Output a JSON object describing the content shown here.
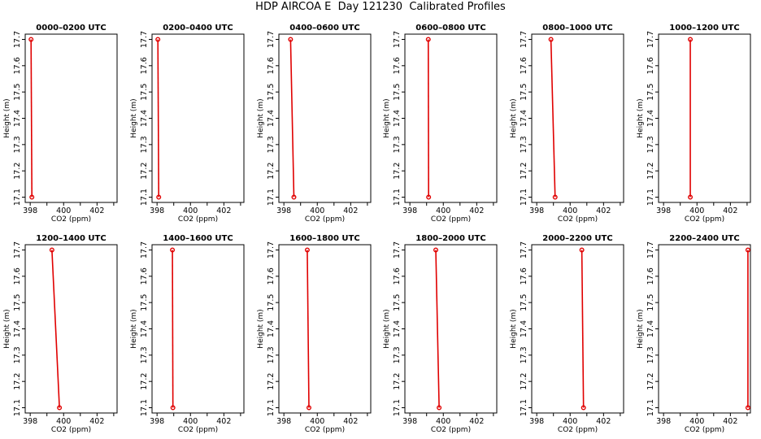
{
  "figure": {
    "title": "HDP AIRCOA E  Day 121230  Calibrated Profiles"
  },
  "colors": {
    "profile": "#e00000",
    "frame": "#000000"
  },
  "chart_data": [
    {
      "type": "line",
      "title": "0000–0200 UTC",
      "xlabel": "CO2 (ppm)",
      "ylabel": "Height (m)",
      "xlim": [
        397.7,
        403.2
      ],
      "ylim": [
        17.08,
        17.72
      ],
      "xticks": [
        "398",
        "400",
        "402"
      ],
      "yticks": [
        "17.1",
        "17.2",
        "17.3",
        "17.4",
        "17.5",
        "17.6",
        "17.7"
      ],
      "x": [
        398.05,
        398.1
      ],
      "y": [
        17.7,
        17.1
      ],
      "grid": false
    },
    {
      "type": "line",
      "title": "0200–0400 UTC",
      "xlabel": "CO2 (ppm)",
      "ylabel": "Height (m)",
      "xlim": [
        397.7,
        403.2
      ],
      "ylim": [
        17.08,
        17.72
      ],
      "xticks": [
        "398",
        "400",
        "402"
      ],
      "yticks": [
        "17.1",
        "17.2",
        "17.3",
        "17.4",
        "17.5",
        "17.6",
        "17.7"
      ],
      "x": [
        398.05,
        398.1
      ],
      "y": [
        17.7,
        17.1
      ],
      "grid": false
    },
    {
      "type": "line",
      "title": "0400–0600 UTC",
      "xlabel": "CO2 (ppm)",
      "ylabel": "Height (m)",
      "xlim": [
        397.7,
        403.2
      ],
      "ylim": [
        17.08,
        17.72
      ],
      "xticks": [
        "398",
        "400",
        "402"
      ],
      "yticks": [
        "17.1",
        "17.2",
        "17.3",
        "17.4",
        "17.5",
        "17.6",
        "17.7"
      ],
      "x": [
        398.4,
        398.6
      ],
      "y": [
        17.7,
        17.1
      ],
      "grid": false
    },
    {
      "type": "line",
      "title": "0600–0800 UTC",
      "xlabel": "CO2 (ppm)",
      "ylabel": "Height (m)",
      "xlim": [
        397.7,
        403.2
      ],
      "ylim": [
        17.08,
        17.72
      ],
      "xticks": [
        "398",
        "400",
        "402"
      ],
      "yticks": [
        "17.1",
        "17.2",
        "17.3",
        "17.4",
        "17.5",
        "17.6",
        "17.7"
      ],
      "x": [
        399.1,
        399.12
      ],
      "y": [
        17.7,
        17.1
      ],
      "grid": false
    },
    {
      "type": "line",
      "title": "0800–1000 UTC",
      "xlabel": "CO2 (ppm)",
      "ylabel": "Height (m)",
      "xlim": [
        397.7,
        403.2
      ],
      "ylim": [
        17.08,
        17.72
      ],
      "xticks": [
        "398",
        "400",
        "402"
      ],
      "yticks": [
        "17.1",
        "17.2",
        "17.3",
        "17.4",
        "17.5",
        "17.6",
        "17.7"
      ],
      "x": [
        398.85,
        399.1
      ],
      "y": [
        17.7,
        17.1
      ],
      "grid": false
    },
    {
      "type": "line",
      "title": "1000–1200 UTC",
      "xlabel": "CO2 (ppm)",
      "ylabel": "Height (m)",
      "xlim": [
        397.7,
        403.2
      ],
      "ylim": [
        17.08,
        17.72
      ],
      "xticks": [
        "398",
        "400",
        "402"
      ],
      "yticks": [
        "17.1",
        "17.2",
        "17.3",
        "17.4",
        "17.5",
        "17.6",
        "17.7"
      ],
      "x": [
        399.6,
        399.6
      ],
      "y": [
        17.7,
        17.1
      ],
      "grid": false
    },
    {
      "type": "line",
      "title": "1200–1400 UTC",
      "xlabel": "CO2 (ppm)",
      "ylabel": "Height (m)",
      "xlim": [
        397.7,
        403.2
      ],
      "ylim": [
        17.08,
        17.72
      ],
      "xticks": [
        "398",
        "400",
        "402"
      ],
      "yticks": [
        "17.1",
        "17.2",
        "17.3",
        "17.4",
        "17.5",
        "17.6",
        "17.7"
      ],
      "x": [
        399.3,
        399.75
      ],
      "y": [
        17.7,
        17.1
      ],
      "grid": false
    },
    {
      "type": "line",
      "title": "1400–1600 UTC",
      "xlabel": "CO2 (ppm)",
      "ylabel": "Height (m)",
      "xlim": [
        397.7,
        403.2
      ],
      "ylim": [
        17.08,
        17.72
      ],
      "xticks": [
        "398",
        "400",
        "402"
      ],
      "yticks": [
        "17.1",
        "17.2",
        "17.3",
        "17.4",
        "17.5",
        "17.6",
        "17.7"
      ],
      "x": [
        398.92,
        398.95
      ],
      "y": [
        17.7,
        17.1
      ],
      "grid": false
    },
    {
      "type": "line",
      "title": "1600–1800 UTC",
      "xlabel": "CO2 (ppm)",
      "ylabel": "Height (m)",
      "xlim": [
        397.7,
        403.2
      ],
      "ylim": [
        17.08,
        17.72
      ],
      "xticks": [
        "398",
        "400",
        "402"
      ],
      "yticks": [
        "17.1",
        "17.2",
        "17.3",
        "17.4",
        "17.5",
        "17.6",
        "17.7"
      ],
      "x": [
        399.4,
        399.5
      ],
      "y": [
        17.7,
        17.1
      ],
      "grid": false
    },
    {
      "type": "line",
      "title": "1800–2000 UTC",
      "xlabel": "CO2 (ppm)",
      "ylabel": "Height (m)",
      "xlim": [
        397.7,
        403.2
      ],
      "ylim": [
        17.08,
        17.72
      ],
      "xticks": [
        "398",
        "400",
        "402"
      ],
      "yticks": [
        "17.1",
        "17.2",
        "17.3",
        "17.4",
        "17.5",
        "17.6",
        "17.7"
      ],
      "x": [
        399.55,
        399.75
      ],
      "y": [
        17.7,
        17.1
      ],
      "grid": false
    },
    {
      "type": "line",
      "title": "2000–2200 UTC",
      "xlabel": "CO2 (ppm)",
      "ylabel": "Height (m)",
      "xlim": [
        397.7,
        403.2
      ],
      "ylim": [
        17.08,
        17.72
      ],
      "xticks": [
        "398",
        "400",
        "402"
      ],
      "yticks": [
        "17.1",
        "17.2",
        "17.3",
        "17.4",
        "17.5",
        "17.6",
        "17.7"
      ],
      "x": [
        400.7,
        400.8
      ],
      "y": [
        17.7,
        17.1
      ],
      "grid": false
    },
    {
      "type": "line",
      "title": "2200–2400 UTC",
      "xlabel": "CO2 (ppm)",
      "ylabel": "Height (m)",
      "xlim": [
        397.7,
        403.2
      ],
      "ylim": [
        17.08,
        17.72
      ],
      "xticks": [
        "398",
        "400",
        "402"
      ],
      "yticks": [
        "17.1",
        "17.2",
        "17.3",
        "17.4",
        "17.5",
        "17.6",
        "17.7"
      ],
      "x": [
        403.05,
        403.05
      ],
      "y": [
        17.7,
        17.1
      ],
      "grid": false
    }
  ]
}
